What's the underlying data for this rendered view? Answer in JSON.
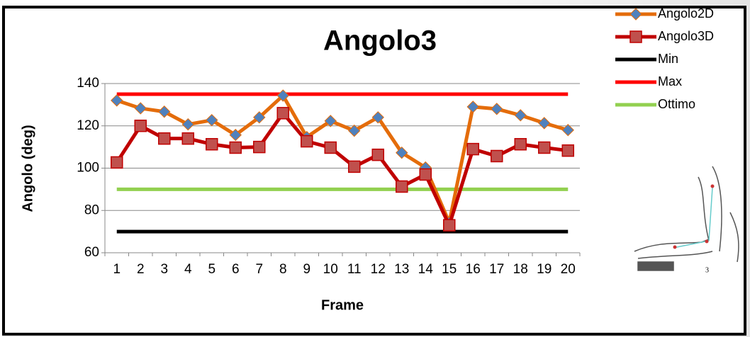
{
  "chart_data": {
    "type": "line",
    "title": "Angolo3",
    "x_label": "Frame",
    "y_label": "Angolo (deg)",
    "categories": [
      "1",
      "2",
      "3",
      "4",
      "5",
      "6",
      "7",
      "8",
      "9",
      "10",
      "11",
      "12",
      "13",
      "14",
      "15",
      "16",
      "17",
      "18",
      "19",
      "20"
    ],
    "ylim": [
      60,
      140
    ],
    "yticks": [
      60,
      80,
      100,
      120,
      140
    ],
    "grid": true,
    "legend": "right",
    "series": [
      {
        "name": "Angolo2D",
        "color": "#e46c0a",
        "marker": "diamond",
        "marker_color": "#4f81bd",
        "values": [
          132,
          128.3,
          126.7,
          120.7,
          122.7,
          115.7,
          124,
          134.3,
          114.7,
          122.3,
          117.7,
          124,
          107.3,
          100.3,
          74.3,
          129,
          128,
          125,
          121.3,
          118
        ]
      },
      {
        "name": "Angolo3D",
        "color": "#c00000",
        "marker": "square",
        "marker_color": "#c0504d",
        "values": [
          102.7,
          120,
          114,
          114,
          111.3,
          109.7,
          110,
          126,
          112.7,
          109.7,
          100.7,
          106.3,
          91.3,
          97,
          73,
          109,
          105.7,
          111.3,
          109.7,
          108.3
        ]
      },
      {
        "name": "Min",
        "color": "#000000",
        "values": [
          70,
          70,
          70,
          70,
          70,
          70,
          70,
          70,
          70,
          70,
          70,
          70,
          70,
          70,
          70,
          70,
          70,
          70,
          70,
          70
        ]
      },
      {
        "name": "Max",
        "color": "#ff0000",
        "values": [
          135,
          135,
          135,
          135,
          135,
          135,
          135,
          135,
          135,
          135,
          135,
          135,
          135,
          135,
          135,
          135,
          135,
          135,
          135,
          135
        ]
      },
      {
        "name": "Ottimo",
        "color": "#92d050",
        "values": [
          90,
          90,
          90,
          90,
          90,
          90,
          90,
          90,
          90,
          90,
          90,
          90,
          90,
          90,
          90,
          90,
          90,
          90,
          90,
          90
        ]
      }
    ]
  }
}
